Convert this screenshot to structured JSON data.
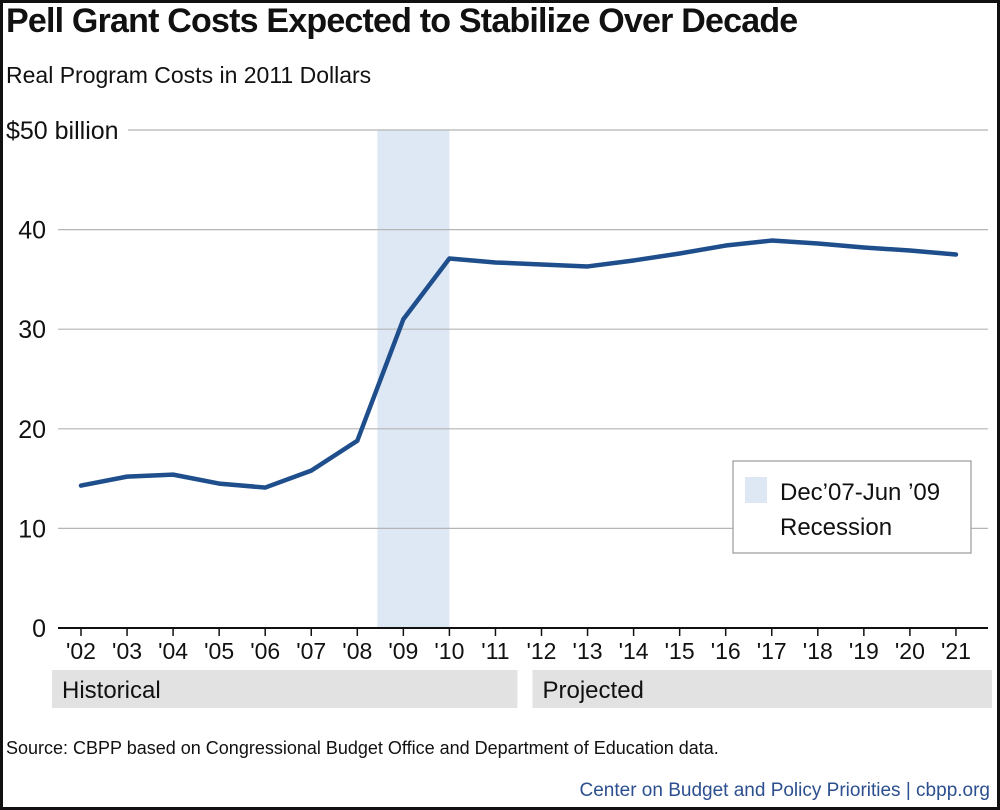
{
  "title": "Pell Grant Costs Expected to Stabilize Over Decade",
  "subtitle": "Real Program Costs in 2011 Dollars",
  "source": "Source: CBPP based on Congressional Budget Office and Department of Education data.",
  "credit": "Center on Budget and Policy Priorities | cbpp.org",
  "colors": {
    "line": "#1f4e8c",
    "recession": "#dde8f4",
    "bar": "#e2e2e2",
    "grid": "#b5b5b5"
  },
  "chart_data": {
    "type": "line",
    "title": "Pell Grant Costs Expected to Stabilize Over Decade",
    "subtitle": "Real Program Costs in 2011 Dollars",
    "ylabel": "",
    "y_top_label": "$50 billion",
    "ylim": [
      0,
      50
    ],
    "yticks": [
      "0",
      "10",
      "20",
      "30",
      "40",
      "$50 billion"
    ],
    "categories": [
      "'02",
      "'03",
      "'04",
      "'05",
      "'06",
      "'07",
      "'08",
      "'09",
      "'10",
      "'11",
      "'12",
      "'13",
      "'14",
      "'15",
      "'16",
      "'17",
      "'18",
      "'19",
      "'20",
      "'21"
    ],
    "series": [
      {
        "values": [
          14.3,
          15.2,
          15.4,
          14.5,
          14.1,
          15.8,
          18.8,
          31.0,
          37.1,
          36.7,
          36.5,
          36.3,
          36.9,
          37.6,
          38.4,
          38.9,
          38.6,
          38.2,
          37.9,
          37.5
        ]
      }
    ],
    "shaded_period": {
      "from": "'08",
      "to": "'10",
      "label_line1": "Dec’07-Jun ’09",
      "label_line2": "Recession"
    },
    "period_bars": [
      {
        "label": "Historical",
        "from": "'02",
        "to": "'11"
      },
      {
        "label": "Projected",
        "from": "'12",
        "to": "'21"
      }
    ],
    "grid": true,
    "legend_position": "bottom-right"
  }
}
